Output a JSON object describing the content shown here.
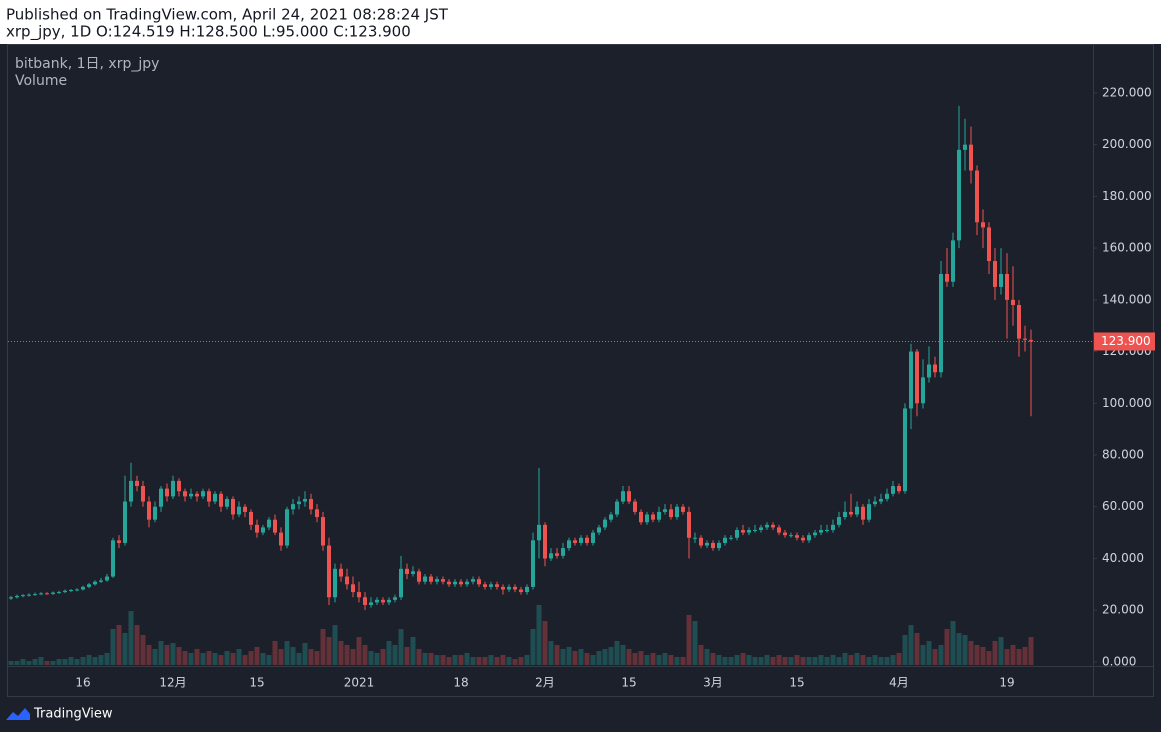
{
  "header": {
    "published": "Published on TradingView.com, April 24, 2021 08:28:24 JST",
    "symbol_info": "xrp_jpy, 1D O:124.519 H:128.500 L:95.000 C:123.900"
  },
  "chart_data": {
    "type": "candlestick",
    "title": "bitbank, 1日, xrp_jpy",
    "volume_label": "Volume",
    "categories": [
      null,
      null,
      null,
      null,
      null,
      null,
      null,
      null,
      null,
      null,
      null,
      null,
      "16",
      null,
      null,
      null,
      null,
      null,
      null,
      null,
      null,
      null,
      null,
      null,
      null,
      null,
      null,
      "12月",
      null,
      null,
      null,
      null,
      null,
      null,
      null,
      null,
      null,
      null,
      null,
      null,
      null,
      "15",
      null,
      null,
      null,
      null,
      null,
      null,
      null,
      null,
      null,
      null,
      null,
      null,
      null,
      null,
      null,
      null,
      "2021",
      null,
      null,
      null,
      null,
      null,
      null,
      null,
      null,
      null,
      null,
      null,
      null,
      null,
      null,
      null,
      null,
      "18",
      null,
      null,
      null,
      null,
      null,
      null,
      null,
      null,
      null,
      null,
      null,
      null,
      null,
      "2月",
      null,
      null,
      null,
      null,
      null,
      null,
      null,
      null,
      null,
      null,
      null,
      null,
      null,
      "15",
      null,
      null,
      null,
      null,
      null,
      null,
      null,
      null,
      null,
      null,
      null,
      null,
      null,
      "3月",
      null,
      null,
      null,
      null,
      null,
      null,
      null,
      null,
      null,
      null,
      null,
      null,
      null,
      "15",
      null,
      null,
      null,
      null,
      null,
      null,
      null,
      null,
      null,
      null,
      null,
      null,
      null,
      null,
      null,
      null,
      "4月",
      null,
      null,
      null,
      null,
      null,
      null,
      null,
      null,
      null,
      null,
      null,
      null,
      null,
      null,
      null,
      null,
      null,
      "19",
      null,
      null,
      null,
      null
    ],
    "open": [
      24.5,
      25,
      25.5,
      25.8,
      26,
      26.2,
      26.5,
      26.3,
      26.8,
      27,
      27.5,
      27.8,
      28,
      29,
      30,
      31,
      31.5,
      33,
      47,
      46,
      62,
      70,
      68,
      62,
      55,
      60,
      67,
      64,
      70,
      66,
      64,
      65,
      64,
      66,
      62,
      65,
      60,
      63,
      57,
      60,
      58,
      53,
      50,
      52,
      55,
      50,
      45,
      59,
      61,
      62,
      63,
      59,
      56,
      45,
      25,
      36,
      33,
      30,
      27,
      25,
      22,
      23,
      24,
      23,
      24,
      25,
      36,
      34,
      35,
      31,
      33,
      31,
      32,
      31,
      30,
      31,
      30,
      31,
      32,
      30,
      29,
      30,
      29,
      28,
      29,
      28,
      27,
      29,
      47,
      53,
      40,
      42,
      41,
      44,
      47,
      46,
      48,
      46,
      50,
      52,
      55,
      57,
      62,
      66,
      62,
      58,
      54,
      57,
      55,
      58,
      59,
      56,
      60,
      58,
      48,
      48,
      45,
      46,
      44,
      46,
      48,
      48,
      51,
      50,
      51,
      51,
      52,
      53,
      52,
      50,
      49,
      49,
      48,
      47,
      49,
      50,
      51,
      51,
      53,
      56,
      58,
      57,
      60,
      55,
      61,
      62,
      63,
      65,
      68,
      66,
      98,
      120,
      100,
      110,
      115,
      112,
      150,
      147,
      163,
      198,
      200,
      190,
      170,
      168,
      155,
      145,
      150,
      140,
      138,
      125,
      124.519
    ],
    "high": [
      25.5,
      26,
      26.2,
      26.5,
      26.8,
      27,
      27,
      27.2,
      27.5,
      28,
      28.2,
      28.5,
      29.5,
      30.5,
      31.5,
      32.5,
      34,
      48,
      49,
      72,
      77,
      72,
      70,
      64,
      62,
      68,
      69,
      72,
      71,
      67,
      67,
      66,
      67,
      67,
      66,
      66,
      64,
      64,
      62,
      61,
      59,
      55,
      53,
      56,
      57,
      52,
      60,
      63,
      64,
      66,
      65,
      61,
      58,
      48,
      38,
      38,
      36,
      33,
      31,
      27,
      25,
      25,
      25,
      25,
      26,
      41,
      38,
      37,
      36,
      34,
      34,
      33,
      33,
      32,
      32,
      32,
      32,
      33,
      33,
      31,
      31,
      31,
      30,
      30,
      30,
      29,
      30,
      50,
      75,
      54,
      44,
      44,
      46,
      48,
      48,
      49,
      49,
      51,
      53,
      56,
      58,
      63,
      68,
      68,
      63,
      59,
      58,
      58,
      60,
      61,
      61,
      61,
      61,
      60,
      50,
      49,
      47,
      47,
      47,
      49,
      49,
      52,
      53,
      52,
      53,
      53,
      54,
      54,
      53,
      51,
      50,
      50,
      49,
      50,
      51,
      53,
      53,
      55,
      58,
      62,
      65,
      62,
      61,
      63,
      64,
      65,
      67,
      70,
      69,
      100,
      123,
      121,
      117,
      122,
      118,
      155,
      160,
      166,
      215,
      210,
      207,
      192,
      175,
      170,
      160,
      160,
      158,
      153,
      140,
      130,
      128.5
    ],
    "low": [
      24,
      24.5,
      25,
      25.3,
      25.6,
      25.8,
      26,
      25.9,
      26.3,
      26.6,
      27,
      27.3,
      27.6,
      28.5,
      29.5,
      30.5,
      31,
      32.5,
      44,
      45,
      60,
      66,
      60,
      52,
      54,
      58,
      62,
      63,
      64,
      62,
      63,
      62,
      63,
      60,
      61,
      58,
      59,
      55,
      56,
      56,
      51,
      48,
      49,
      51,
      49,
      43,
      44,
      57,
      59,
      60,
      57,
      54,
      43,
      22,
      23,
      31,
      28,
      25,
      23,
      20,
      21,
      22,
      22,
      22,
      23,
      24,
      32,
      33,
      30,
      30,
      30,
      30,
      30,
      29,
      29,
      29,
      29,
      30,
      29,
      28,
      28,
      28,
      26,
      27,
      27,
      26,
      26,
      28,
      40,
      37,
      39,
      40,
      40,
      43,
      45,
      45,
      45,
      45,
      49,
      51,
      54,
      56,
      61,
      61,
      57,
      53,
      53,
      54,
      54,
      57,
      55,
      55,
      57,
      40,
      46,
      44,
      44,
      43,
      43,
      45,
      47,
      47,
      49,
      49,
      50,
      50,
      51,
      51,
      49,
      48,
      48,
      47,
      46,
      46,
      48,
      49,
      50,
      50,
      52,
      55,
      56,
      56,
      53,
      54,
      60,
      61,
      62,
      64,
      65,
      65,
      90,
      95,
      98,
      108,
      110,
      110,
      145,
      145,
      160,
      190,
      185,
      165,
      160,
      150,
      140,
      142,
      125,
      130,
      118,
      120,
      95
    ],
    "close": [
      25,
      25.5,
      25.8,
      26,
      26.2,
      26.5,
      26.3,
      26.8,
      27,
      27.5,
      27.8,
      28,
      29,
      30,
      31,
      31.5,
      33,
      47,
      46,
      62,
      70,
      68,
      62,
      55,
      60,
      67,
      64,
      70,
      66,
      64,
      65,
      64,
      66,
      62,
      65,
      60,
      63,
      57,
      60,
      58,
      53,
      50,
      52,
      55,
      50,
      45,
      59,
      61,
      62,
      63,
      59,
      56,
      45,
      25,
      36,
      33,
      30,
      27,
      25,
      22,
      23,
      24,
      23,
      24,
      25,
      36,
      34,
      35,
      31,
      33,
      31,
      32,
      31,
      30,
      31,
      30,
      31,
      32,
      30,
      29,
      30,
      29,
      28,
      29,
      28,
      27,
      29,
      47,
      53,
      40,
      42,
      41,
      44,
      47,
      46,
      48,
      46,
      50,
      52,
      55,
      57,
      62,
      66,
      62,
      58,
      54,
      57,
      55,
      58,
      59,
      56,
      60,
      58,
      48,
      48,
      45,
      46,
      44,
      46,
      48,
      48,
      51,
      50,
      51,
      51,
      52,
      53,
      52,
      50,
      49,
      49,
      48,
      47,
      49,
      50,
      51,
      51,
      53,
      56,
      58,
      57,
      60,
      55,
      61,
      62,
      63,
      65,
      68,
      66,
      98,
      120,
      100,
      110,
      115,
      112,
      150,
      147,
      163,
      198,
      200,
      190,
      170,
      168,
      155,
      145,
      150,
      140,
      138,
      125,
      124.519,
      123.9
    ],
    "volume": [
      2,
      2,
      3,
      2,
      3,
      4,
      2,
      2,
      3,
      3,
      4,
      3,
      4,
      5,
      4,
      5,
      6,
      18,
      20,
      16,
      27,
      20,
      15,
      10,
      8,
      12,
      10,
      11,
      9,
      7,
      6,
      8,
      6,
      7,
      6,
      5,
      7,
      6,
      8,
      5,
      7,
      9,
      6,
      5,
      12,
      8,
      12,
      9,
      6,
      11,
      8,
      7,
      18,
      14,
      20,
      12,
      10,
      8,
      14,
      10,
      7,
      6,
      8,
      12,
      10,
      18,
      9,
      14,
      8,
      6,
      6,
      5,
      5,
      4,
      5,
      5,
      6,
      4,
      4,
      4,
      5,
      4,
      5,
      4,
      3,
      4,
      5,
      18,
      30,
      22,
      12,
      10,
      8,
      9,
      7,
      8,
      6,
      5,
      7,
      8,
      9,
      12,
      10,
      8,
      6,
      7,
      5,
      6,
      5,
      6,
      5,
      4,
      4,
      25,
      22,
      10,
      8,
      6,
      5,
      4,
      4,
      5,
      6,
      5,
      4,
      4,
      5,
      4,
      5,
      4,
      4,
      5,
      4,
      4,
      4,
      5,
      4,
      5,
      4,
      6,
      5,
      6,
      5,
      4,
      5,
      4,
      4,
      5,
      6,
      15,
      20,
      16,
      10,
      12,
      8,
      10,
      18,
      22,
      16,
      15,
      12,
      10,
      9,
      7,
      12,
      14,
      8,
      10,
      8,
      9,
      14
    ],
    "up_color": "#26a69a",
    "down_color": "#ef5350",
    "ylim": [
      -1.2,
      239.7
    ],
    "yticks": [
      {
        "value": 0,
        "label": "0.000"
      },
      {
        "value": 20,
        "label": "20.000"
      },
      {
        "value": 40,
        "label": "40.000"
      },
      {
        "value": 60,
        "label": "60.000"
      },
      {
        "value": 80,
        "label": "80.000"
      },
      {
        "value": 100,
        "label": "100.000"
      },
      {
        "value": 120,
        "label": "120.000"
      },
      {
        "value": 140,
        "label": "140.000"
      },
      {
        "value": 160,
        "label": "160.000"
      },
      {
        "value": 180,
        "label": "180.000"
      },
      {
        "value": 200,
        "label": "200.000"
      },
      {
        "value": 220,
        "label": "220.000"
      }
    ],
    "last_price": {
      "value": 123.9,
      "label": "123.900"
    }
  },
  "footer": {
    "brand": "TradingView"
  }
}
